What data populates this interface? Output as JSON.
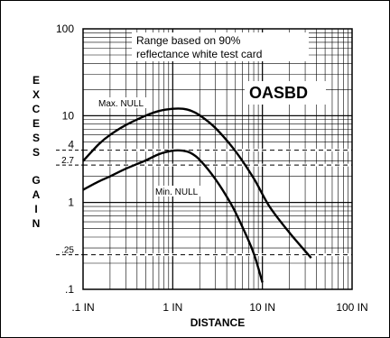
{
  "chart_data": {
    "type": "line",
    "x_scale": "log",
    "y_scale": "log",
    "xlim": [
      0.1,
      100
    ],
    "ylim": [
      0.1,
      100
    ],
    "x_ticks": [
      {
        "value": 0.1,
        "label": ".1 IN"
      },
      {
        "value": 1,
        "label": "1 IN"
      },
      {
        "value": 10,
        "label": "10 IN"
      },
      {
        "value": 100,
        "label": "100 IN"
      }
    ],
    "y_ticks": [
      {
        "value": 100,
        "label": "100"
      },
      {
        "value": 10,
        "label": "10"
      },
      {
        "value": 4,
        "label": "4"
      },
      {
        "value": 2.7,
        "label": "2.7"
      },
      {
        "value": 1,
        "label": "1"
      },
      {
        "value": 0.25,
        "label": ".25"
      },
      {
        "value": 0.1,
        "label": ".1"
      }
    ],
    "reference_lines": [
      4,
      2.7,
      0.25
    ],
    "xlabel": "DISTANCE",
    "ylabel": "EXCESS GAIN",
    "ylabel_letters": [
      [
        "E",
        "X",
        "C",
        "E",
        "S",
        "S"
      ],
      [
        "G",
        "A",
        "I",
        "N"
      ]
    ],
    "note": [
      "Range based on 90%",
      "reflectance white test card"
    ],
    "badge": "OASBD",
    "grid": true,
    "series": [
      {
        "name": "Max. NULL",
        "x": [
          0.1,
          0.15,
          0.2,
          0.3,
          0.5,
          0.7,
          1.0,
          1.3,
          1.6,
          2.0,
          3.0,
          5.0,
          8.0,
          12.0,
          20.0,
          35.0
        ],
        "y": [
          3.0,
          4.7,
          6.0,
          7.8,
          10.0,
          11.3,
          12.0,
          12.0,
          11.4,
          10.1,
          7.2,
          3.9,
          1.9,
          0.9,
          0.45,
          0.23
        ]
      },
      {
        "name": "Min. NULL",
        "x": [
          0.1,
          0.15,
          0.2,
          0.3,
          0.5,
          0.7,
          1.0,
          1.3,
          1.6,
          2.0,
          3.0,
          4.5,
          6.0,
          8.0,
          10.0
        ],
        "y": [
          1.4,
          1.75,
          2.0,
          2.45,
          3.05,
          3.6,
          3.95,
          3.95,
          3.7,
          3.1,
          1.85,
          0.95,
          0.52,
          0.26,
          0.12
        ]
      }
    ]
  }
}
